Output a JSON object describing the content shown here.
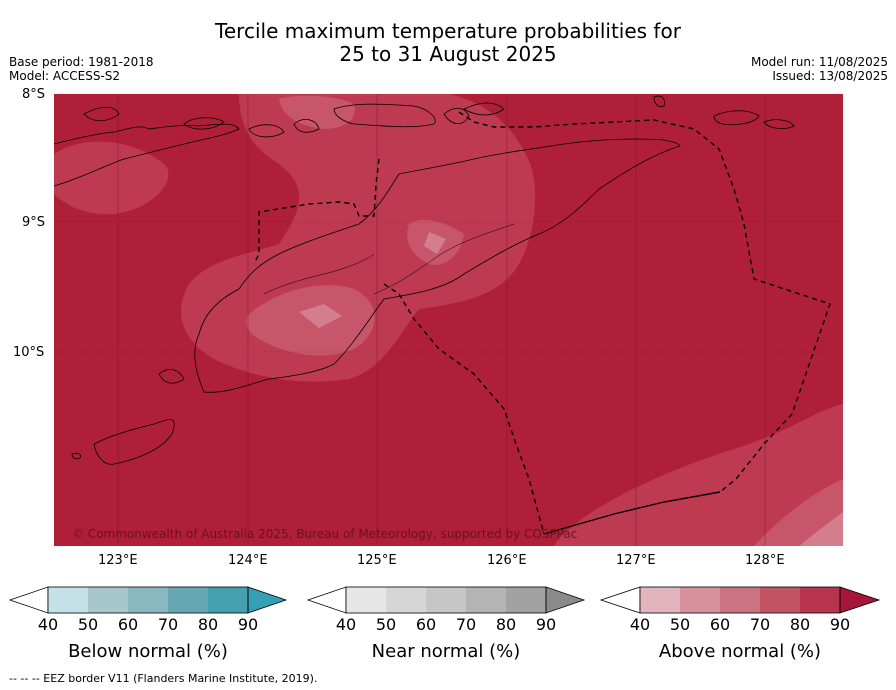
{
  "title": {
    "line1": "Tercile maximum temperature probabilities for",
    "line2": "25 to 31 August 2025"
  },
  "meta": {
    "base_period": "Base period: 1981-2018",
    "model": "Model: ACCESS-S2",
    "model_run": "Model run: 11/08/2025",
    "issued": "Issued: 13/08/2025"
  },
  "map": {
    "lat_labels": [
      "8°S",
      "9°S",
      "10°S"
    ],
    "lon_labels": [
      "123°E",
      "124°E",
      "125°E",
      "126°E",
      "127°E",
      "128°E"
    ],
    "copyright": "© Commonwealth of Australia 2025, Bureau of Meteorology, supported by COSPPac",
    "colors": {
      "ocean_base": "#b01f38",
      "level_80": "#be3a51",
      "level_70": "#c8566a",
      "level_60": "#d47d8c",
      "land_outline": "#000000",
      "eez_line": "#000000"
    },
    "dominant_category": "Above normal (90%+)"
  },
  "colorbars": [
    {
      "name": "below",
      "title": "Below normal (%)",
      "ticks": [
        "40",
        "50",
        "60",
        "70",
        "80",
        "90"
      ],
      "colors": [
        "#c5e0e6",
        "#a7c7cc",
        "#89b8c1",
        "#67a7b3",
        "#45a0b0",
        "#34a0b3"
      ]
    },
    {
      "name": "near",
      "title": "Near normal (%)",
      "ticks": [
        "40",
        "50",
        "60",
        "70",
        "80",
        "90"
      ],
      "colors": [
        "#e6e6e6",
        "#d6d6d6",
        "#c6c6c6",
        "#b4b4b4",
        "#a2a2a2",
        "#8a8a8a"
      ]
    },
    {
      "name": "above",
      "title": "Above normal (%)",
      "ticks": [
        "40",
        "50",
        "60",
        "70",
        "80",
        "90"
      ],
      "colors": [
        "#e2b4bd",
        "#d7919d",
        "#cb7381",
        "#c15363",
        "#b8334c",
        "#a5163a"
      ]
    }
  ],
  "footer": {
    "legend_line": "-- -- -- EEZ border V11 (Flanders Marine Institute, 2019)."
  }
}
